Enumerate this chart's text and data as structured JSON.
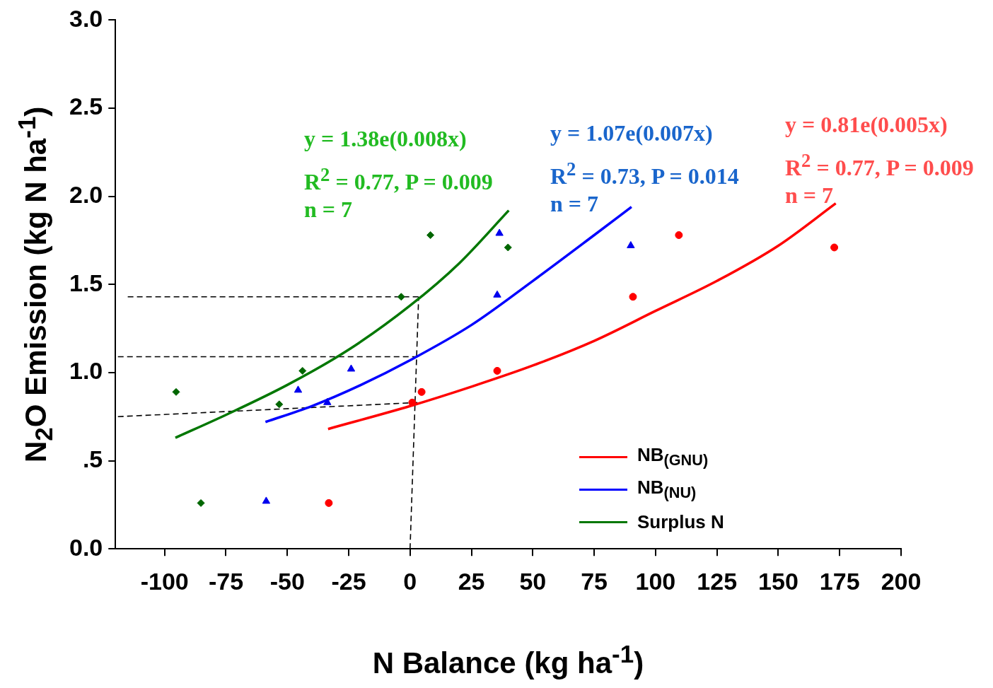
{
  "chart_data": {
    "type": "scatter",
    "xlabel": "N Balance (kg ha$^{-1}$)",
    "ylabel": "N$_{2}$O Emission (kg N ha$^{-1}$)",
    "xlim": [
      -120,
      200
    ],
    "xticks": [
      -100,
      -75,
      -50,
      -25,
      0,
      25,
      50,
      75,
      100,
      125,
      150,
      175,
      200
    ],
    "ylim": [
      0,
      3
    ],
    "yticks": [
      {
        "value": 0,
        "label": "0.0"
      },
      {
        "value": 0.5,
        "label": ".5"
      },
      {
        "value": 1,
        "label": "1.0"
      },
      {
        "value": 1.5,
        "label": "1.5"
      },
      {
        "value": 2,
        "label": "2.0"
      },
      {
        "value": 2.5,
        "label": "2.5"
      },
      {
        "value": 3,
        "label": "3.0"
      }
    ],
    "grid": false,
    "legend": "bottom right",
    "annotations": [
      "y = 1.38e(0.008x)",
      "R$^{2}$ = 0.77, P = 0.009",
      "n = 7",
      "y = 1.07e(0.007x)",
      "R$^{2}$ = 0.73, P = 0.014",
      "n = 7",
      "y = 0.81e(0.005x)",
      "R$^{2}$ = 0.77, P = 0.009",
      "n = 7"
    ],
    "series": [
      {
        "marker": "diamond",
        "color": "#006600",
        "x": [
          -95.3,
          -85.2,
          -53.3,
          -43.8,
          -3.6,
          8.3,
          39.9
        ],
        "values": [
          0.89,
          0.26,
          0.82,
          1.01,
          1.43,
          1.78,
          1.71
        ]
      },
      {
        "marker": "triangle",
        "color": "#0000ee",
        "x": [
          -58.6,
          -45.6,
          -33.7,
          -24,
          35.5,
          36.4,
          89.9
        ],
        "values": [
          0.27,
          0.9,
          0.83,
          1.02,
          1.44,
          1.79,
          1.72
        ]
      },
      {
        "marker": "circle",
        "color": "#ff0000",
        "x": [
          -33.1,
          0.9,
          4.7,
          35.5,
          90.8,
          109.5,
          172.8
        ],
        "values": [
          0.26,
          0.83,
          0.89,
          1.01,
          1.43,
          1.78,
          1.71
        ]
      },
      {
        "type": "line",
        "name": "NB$_{(GNU)}$",
        "color": "#ff0000",
        "marker": "none",
        "line_style": "solid",
        "x": [
          -33.4,
          0,
          25,
          50,
          75,
          100,
          125,
          150,
          173.4
        ],
        "values": [
          0.68,
          0.81,
          0.92,
          1.04,
          1.18,
          1.35,
          1.52,
          1.72,
          1.96
        ]
      },
      {
        "type": "line",
        "name": "NB$_{(NU)}$",
        "color": "#0000ff",
        "marker": "none",
        "line_style": "solid",
        "x": [
          -58.9,
          -40,
          -20,
          0,
          25,
          50,
          75,
          90.2
        ],
        "values": [
          0.72,
          0.81,
          0.93,
          1.07,
          1.27,
          1.52,
          1.78,
          1.94
        ]
      },
      {
        "type": "line",
        "name": "Surplus N",
        "color": "#007700",
        "marker": "none",
        "line_style": "solid",
        "x": [
          -95.6,
          -75,
          -50,
          -25,
          0,
          20,
          40.2
        ],
        "values": [
          0.63,
          0.76,
          0.93,
          1.13,
          1.38,
          1.62,
          1.92
        ]
      },
      {
        "type": "line",
        "color": "#000000",
        "marker": "none",
        "line_style": "dashed",
        "x": [
          -115,
          3.5
        ],
        "values": [
          1.43,
          1.43
        ]
      },
      {
        "type": "line",
        "color": "#000000",
        "marker": "none",
        "line_style": "dashed",
        "x": [
          -119,
          3
        ],
        "values": [
          1.09,
          1.09
        ]
      },
      {
        "type": "line",
        "color": "#000000",
        "marker": "none",
        "line_style": "dashed",
        "x": [
          -119,
          3
        ],
        "values": [
          0.75,
          0.83
        ]
      },
      {
        "type": "line",
        "color": "#000000",
        "marker": "none",
        "line_style": "dashed",
        "x": [
          0,
          3.5
        ],
        "values": [
          0,
          1.43
        ]
      }
    ]
  }
}
